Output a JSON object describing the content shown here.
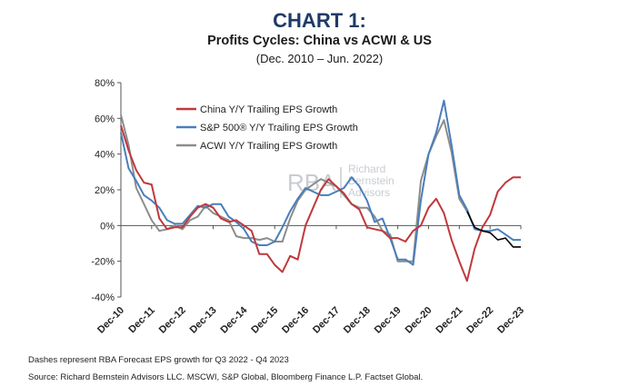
{
  "header": {
    "title": "CHART 1:",
    "subtitle": "Profits Cycles: China vs ACWI & US",
    "period": "(Dec. 2010 – Jun. 2022)"
  },
  "watermark": {
    "mark": "RBA",
    "line1": "Richard",
    "line2": "Bernstein",
    "line3": "Advisors"
  },
  "footnotes": {
    "note": "Dashes represent RBA Forecast EPS growth for Q3 2022 - Q4 2023",
    "source": "Source:  Richard Bernstein Advisors LLC. MSCWI, S&P Global, Bloomberg Finance L.P. Factset Global."
  },
  "colors": {
    "china": "#c0393b",
    "sp500": "#4a7ebb",
    "acwi": "#8c8c8c",
    "forecast": "#000000",
    "title": "#1f3a68"
  },
  "chart_data": {
    "type": "line",
    "title": "Profits Cycles: China vs ACWI & US",
    "x_tick_labels": [
      "Dec-10",
      "Dec-11",
      "Dec-12",
      "Dec-13",
      "Dec-14",
      "Dec-15",
      "Dec-16",
      "Dec-17",
      "Dec-18",
      "Dec-19",
      "Dec-20",
      "Dec-21",
      "Dec-22",
      "Dec-23"
    ],
    "y_tick_labels": [
      "80%",
      "60%",
      "40%",
      "20%",
      "0%",
      "-20%",
      "-40%"
    ],
    "ylim": [
      -40,
      80
    ],
    "y_unit": "%",
    "quarters": [
      "Dec-10",
      "Mar-11",
      "Jun-11",
      "Sep-11",
      "Dec-11",
      "Mar-12",
      "Jun-12",
      "Sep-12",
      "Dec-12",
      "Mar-13",
      "Jun-13",
      "Sep-13",
      "Dec-13",
      "Mar-14",
      "Jun-14",
      "Sep-14",
      "Dec-14",
      "Mar-15",
      "Jun-15",
      "Sep-15",
      "Dec-15",
      "Mar-16",
      "Jun-16",
      "Sep-16",
      "Dec-16",
      "Mar-17",
      "Jun-17",
      "Sep-17",
      "Dec-17",
      "Mar-18",
      "Jun-18",
      "Sep-18",
      "Dec-18",
      "Mar-19",
      "Jun-19",
      "Sep-19",
      "Dec-19",
      "Mar-20",
      "Jun-20",
      "Sep-20",
      "Dec-20",
      "Mar-21",
      "Jun-21",
      "Sep-21",
      "Dec-21",
      "Mar-22",
      "Jun-22",
      "Sep-22",
      "Dec-22",
      "Mar-23",
      "Jun-23",
      "Sep-23",
      "Dec-23"
    ],
    "legend_position": "top-left",
    "grid": false,
    "series": [
      {
        "name": "China Y/Y Trailing EPS Growth",
        "color": "#c0393b",
        "values": [
          56,
          42,
          31,
          24,
          23,
          4,
          -2,
          -1,
          -1,
          5,
          10,
          12,
          10,
          4,
          2,
          3,
          0,
          -3,
          -16,
          -16,
          -22,
          -26,
          -17,
          -19,
          0,
          10,
          20,
          26,
          22,
          18,
          12,
          9,
          -1,
          -2,
          -3,
          -7,
          -7,
          -9,
          -3,
          0,
          10,
          15,
          7,
          -8,
          -20,
          -31,
          -13,
          -1,
          6,
          19,
          24,
          27,
          27
        ]
      },
      {
        "name": "S&P 500® Y/Y Trailing EPS Growth",
        "color": "#4a7ebb",
        "values": [
          52,
          32,
          25,
          17,
          14,
          10,
          3,
          1,
          1,
          6,
          11,
          10,
          12,
          12,
          5,
          2,
          -2,
          -9,
          -11,
          -11,
          -9,
          -1,
          8,
          15,
          21,
          19,
          17,
          17,
          19,
          21,
          27,
          22,
          14,
          2,
          4,
          -7,
          -19,
          -19,
          -22,
          14,
          40,
          52,
          70,
          45,
          17,
          9,
          -2,
          -3,
          -3,
          -2,
          -5,
          -8,
          -8
        ]
      },
      {
        "name": "ACWI Y/Y Trailing EPS Growth",
        "color": "#8c8c8c",
        "values": [
          62,
          45,
          21,
          12,
          3,
          -3,
          -2,
          0,
          -2,
          3,
          5,
          11,
          7,
          5,
          3,
          -6,
          -7,
          -7,
          -8,
          -7,
          -9,
          -9,
          4,
          14,
          20,
          23,
          26,
          24,
          22,
          17,
          12,
          10,
          10,
          5,
          -3,
          -5,
          -20,
          -20,
          -20,
          25,
          40,
          50,
          59,
          41,
          15,
          8
        ]
      },
      {
        "name": "Forecast",
        "color": "#000000",
        "dashed_description": "RBA Forecast",
        "start_index": 45,
        "values": [
          8,
          -1,
          -3,
          -4,
          -8,
          -7,
          -12,
          -12
        ]
      }
    ]
  }
}
